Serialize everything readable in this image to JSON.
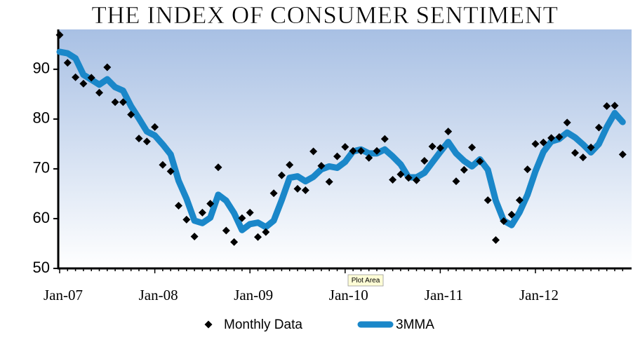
{
  "chart_data": {
    "type": "line",
    "title": "THE INDEX OF CONSUMER SENTIMENT",
    "tooltip": "Plot Area",
    "categories": [
      "Jan-07",
      null,
      null,
      null,
      null,
      null,
      null,
      null,
      null,
      null,
      null,
      null,
      "Jan-08",
      null,
      null,
      null,
      null,
      null,
      null,
      null,
      null,
      null,
      null,
      null,
      "Jan-09",
      null,
      null,
      null,
      null,
      null,
      null,
      null,
      null,
      null,
      null,
      null,
      "Jan-10",
      null,
      null,
      null,
      null,
      null,
      null,
      null,
      null,
      null,
      null,
      null,
      "Jan-11",
      null,
      null,
      null,
      null,
      null,
      null,
      null,
      null,
      null,
      null,
      null,
      "Jan-12",
      null,
      null,
      null,
      null,
      null,
      null,
      null,
      null,
      null,
      null,
      null
    ],
    "series": [
      {
        "name": "Monthly Data",
        "type": "scatter",
        "color": "#000000",
        "values": [
          96.9,
          91.3,
          88.4,
          87.1,
          88.3,
          85.3,
          90.4,
          83.4,
          83.4,
          80.9,
          76.1,
          75.5,
          78.4,
          70.8,
          69.5,
          62.6,
          59.8,
          56.4,
          61.2,
          63.0,
          70.3,
          57.6,
          55.3,
          60.1,
          61.2,
          56.3,
          57.3,
          65.1,
          68.7,
          70.8,
          66.0,
          65.7,
          73.5,
          70.6,
          67.4,
          72.5,
          74.4,
          73.6,
          73.6,
          72.2,
          73.6,
          76.0,
          67.8,
          68.9,
          68.2,
          67.7,
          71.6,
          74.5,
          74.2,
          77.5,
          67.5,
          69.8,
          74.3,
          71.5,
          63.7,
          55.7,
          59.5,
          60.8,
          63.7,
          69.9,
          75.0,
          75.3,
          76.2,
          76.4,
          79.3,
          73.2,
          72.3,
          74.3,
          78.3,
          82.6,
          82.7,
          72.9
        ]
      },
      {
        "name": "3MMA",
        "type": "line",
        "color": "#1a87c9",
        "values": [
          93.5,
          93.2,
          92.2,
          88.9,
          87.9,
          86.9,
          88.0,
          86.4,
          85.7,
          82.6,
          80.1,
          77.5,
          76.7,
          74.9,
          72.9,
          67.6,
          64.0,
          59.6,
          59.1,
          60.2,
          64.8,
          63.6,
          61.1,
          57.7,
          58.9,
          59.2,
          58.3,
          59.6,
          63.7,
          68.2,
          68.5,
          67.5,
          68.4,
          69.9,
          70.5,
          70.2,
          71.4,
          73.5,
          73.9,
          73.1,
          73.1,
          73.9,
          72.5,
          70.9,
          68.3,
          68.3,
          69.2,
          71.3,
          73.4,
          75.4,
          73.1,
          71.6,
          70.5,
          71.9,
          69.8,
          63.6,
          59.6,
          58.7,
          61.3,
          64.8,
          69.5,
          73.4,
          75.5,
          76.0,
          77.3,
          76.3,
          74.9,
          73.3,
          75.0,
          78.4,
          81.2,
          79.4
        ]
      }
    ],
    "ylim": [
      50,
      98
    ],
    "yticks": [
      50,
      60,
      70,
      80,
      90
    ],
    "legend": "bottom"
  }
}
